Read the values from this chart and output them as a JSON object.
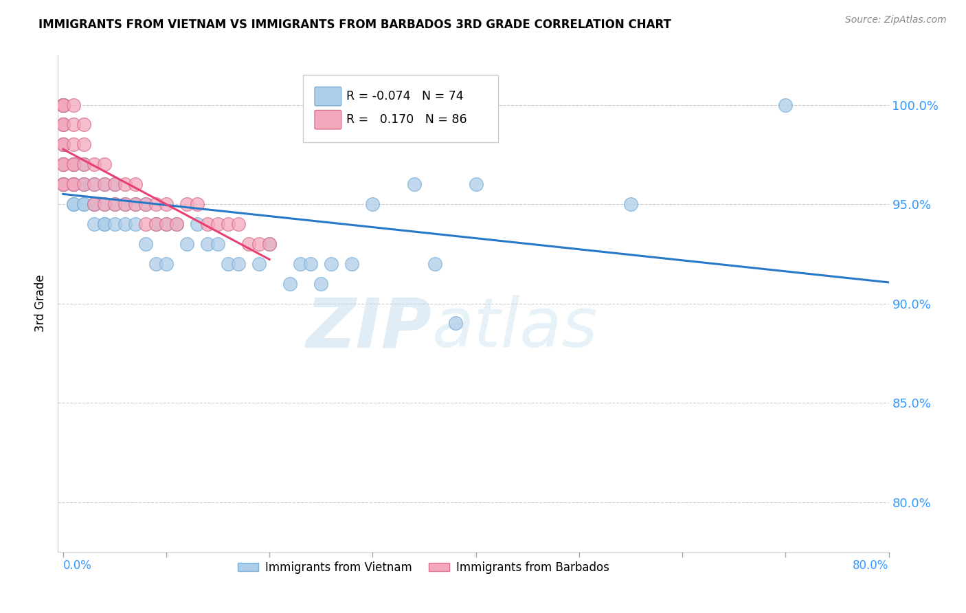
{
  "title": "IMMIGRANTS FROM VIETNAM VS IMMIGRANTS FROM BARBADOS 3RD GRADE CORRELATION CHART",
  "source": "Source: ZipAtlas.com",
  "ylabel": "3rd Grade",
  "ytick_labels": [
    "80.0%",
    "85.0%",
    "90.0%",
    "95.0%",
    "100.0%"
  ],
  "ytick_values": [
    0.8,
    0.85,
    0.9,
    0.95,
    1.0
  ],
  "xlim": [
    -0.005,
    0.8
  ],
  "ylim": [
    0.775,
    1.025
  ],
  "legend_r_vietnam": "-0.074",
  "legend_n_vietnam": "74",
  "legend_r_barbados": "0.170",
  "legend_n_barbados": "86",
  "color_vietnam": "#aecde8",
  "color_barbados": "#f4a8bc",
  "trendline_vietnam_color": "#2878c8",
  "trendline_barbados_color": "#e84070",
  "watermark_zip": "ZIP",
  "watermark_atlas": "atlas",
  "vietnam_x": [
    0.0,
    0.0,
    0.0,
    0.0,
    0.0,
    0.0,
    0.0,
    0.0,
    0.0,
    0.0,
    0.01,
    0.01,
    0.01,
    0.01,
    0.01,
    0.01,
    0.02,
    0.02,
    0.02,
    0.02,
    0.02,
    0.03,
    0.03,
    0.03,
    0.03,
    0.04,
    0.04,
    0.04,
    0.04,
    0.05,
    0.05,
    0.05,
    0.06,
    0.06,
    0.07,
    0.07,
    0.08,
    0.08,
    0.09,
    0.09,
    0.1,
    0.1,
    0.11,
    0.12,
    0.13,
    0.14,
    0.15,
    0.16,
    0.17,
    0.19,
    0.2,
    0.22,
    0.23,
    0.24,
    0.25,
    0.26,
    0.28,
    0.3,
    0.34,
    0.36,
    0.38,
    0.4,
    0.55,
    0.7
  ],
  "vietnam_y": [
    1.0,
    1.0,
    1.0,
    1.0,
    1.0,
    0.99,
    0.98,
    0.97,
    0.96,
    0.96,
    0.97,
    0.97,
    0.96,
    0.96,
    0.95,
    0.95,
    0.97,
    0.96,
    0.96,
    0.95,
    0.95,
    0.96,
    0.95,
    0.95,
    0.94,
    0.96,
    0.95,
    0.94,
    0.94,
    0.96,
    0.95,
    0.94,
    0.95,
    0.94,
    0.95,
    0.94,
    0.95,
    0.93,
    0.94,
    0.92,
    0.94,
    0.92,
    0.94,
    0.93,
    0.94,
    0.93,
    0.93,
    0.92,
    0.92,
    0.92,
    0.93,
    0.91,
    0.92,
    0.92,
    0.91,
    0.92,
    0.92,
    0.95,
    0.96,
    0.92,
    0.89,
    0.96,
    0.95,
    1.0
  ],
  "barbados_x": [
    0.0,
    0.0,
    0.0,
    0.0,
    0.0,
    0.0,
    0.0,
    0.0,
    0.0,
    0.0,
    0.0,
    0.0,
    0.01,
    0.01,
    0.01,
    0.01,
    0.01,
    0.01,
    0.01,
    0.02,
    0.02,
    0.02,
    0.02,
    0.03,
    0.03,
    0.03,
    0.04,
    0.04,
    0.04,
    0.05,
    0.05,
    0.06,
    0.06,
    0.07,
    0.07,
    0.08,
    0.08,
    0.09,
    0.09,
    0.1,
    0.1,
    0.11,
    0.12,
    0.13,
    0.14,
    0.15,
    0.16,
    0.17,
    0.18,
    0.19,
    0.2
  ],
  "barbados_y": [
    1.0,
    1.0,
    1.0,
    1.0,
    0.99,
    0.99,
    0.98,
    0.98,
    0.97,
    0.97,
    0.96,
    0.96,
    1.0,
    0.99,
    0.98,
    0.97,
    0.97,
    0.96,
    0.96,
    0.99,
    0.98,
    0.97,
    0.96,
    0.97,
    0.96,
    0.95,
    0.97,
    0.96,
    0.95,
    0.96,
    0.95,
    0.96,
    0.95,
    0.96,
    0.95,
    0.95,
    0.94,
    0.95,
    0.94,
    0.95,
    0.94,
    0.94,
    0.95,
    0.95,
    0.94,
    0.94,
    0.94,
    0.94,
    0.93,
    0.93,
    0.93
  ]
}
